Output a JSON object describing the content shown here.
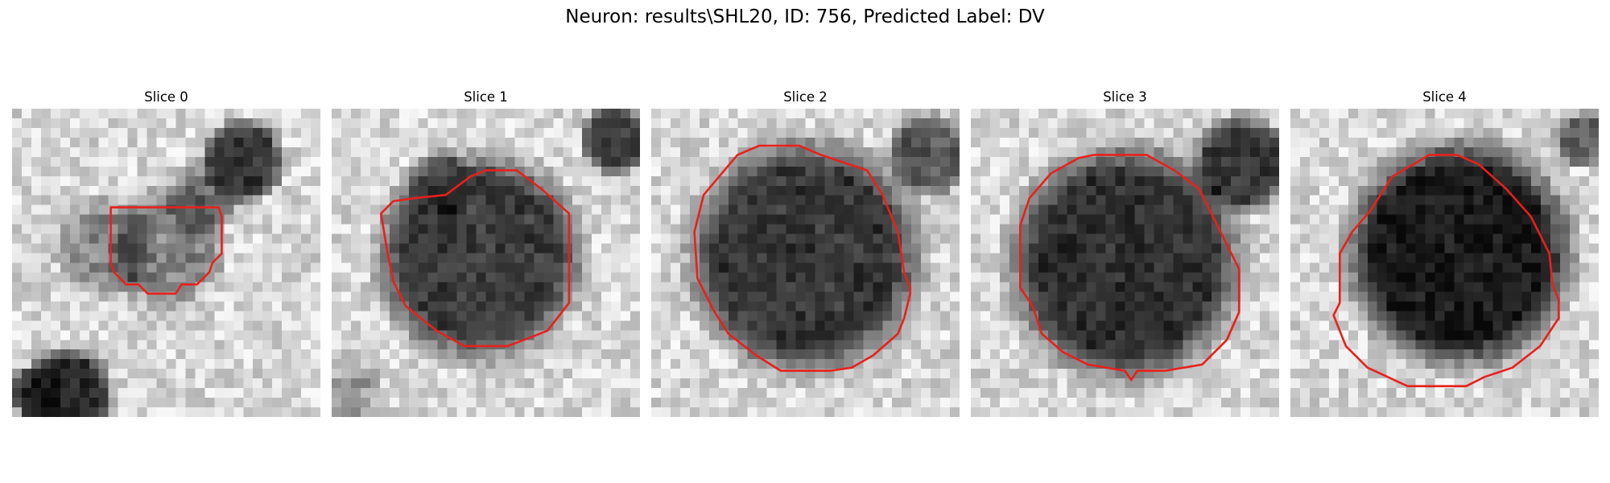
{
  "figure": {
    "title": "Neuron: results\\SHL20, ID: 756, Predicted Label: DV"
  },
  "slices": [
    {
      "title": "Slice 0"
    },
    {
      "title": "Slice 1"
    },
    {
      "title": "Slice 2"
    },
    {
      "title": "Slice 3"
    },
    {
      "title": "Slice 4"
    }
  ],
  "colors": {
    "contour": "#e8201c",
    "background": "#ffffff"
  }
}
